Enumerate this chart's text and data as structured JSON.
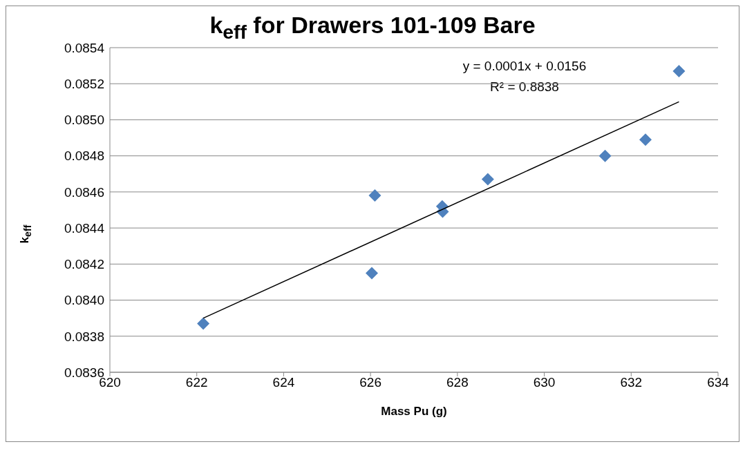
{
  "chart_data": {
    "type": "scatter",
    "title": "k$_{eff}$ for Drawers 101-109 Bare",
    "xlabel": "Mass Pu (g)",
    "ylabel": "k$_{eff}$",
    "annotations": [
      "y = 0.0001x + 0.0156",
      "R² = 0.8838"
    ],
    "xlim": [
      620,
      634
    ],
    "xticks": [
      620,
      622,
      624,
      626,
      628,
      630,
      632,
      634
    ],
    "ylim": [
      0.0836,
      0.0854
    ],
    "yticks": [
      {
        "value": 0.0836,
        "label": "0.0836"
      },
      {
        "value": 0.0838,
        "label": "0.0838"
      },
      {
        "value": 0.084,
        "label": "0.0840"
      },
      {
        "value": 0.0842,
        "label": "0.0842"
      },
      {
        "value": 0.0844,
        "label": "0.0844"
      },
      {
        "value": 0.0846,
        "label": "0.0846"
      },
      {
        "value": 0.0848,
        "label": "0.0848"
      },
      {
        "value": 0.085,
        "label": "0.0850"
      },
      {
        "value": 0.0852,
        "label": "0.0852"
      },
      {
        "value": 0.0854,
        "label": "0.0854"
      }
    ],
    "grid": "y",
    "marker": "diamond",
    "series": [
      {
        "type": "scatter",
        "color": "#4f81bd",
        "x": [
          622.15,
          626.03,
          626.1,
          627.65,
          627.66,
          628.7,
          631.4,
          632.33,
          633.1
        ],
        "values": [
          0.08387,
          0.08415,
          0.08458,
          0.08452,
          0.08449,
          0.08467,
          0.0848,
          0.08489,
          0.08527
        ]
      },
      {
        "type": "line",
        "color": "#000000",
        "marker": "none",
        "x": [
          622.15,
          633.1
        ],
        "values": [
          0.0839,
          0.0851
        ]
      }
    ]
  }
}
